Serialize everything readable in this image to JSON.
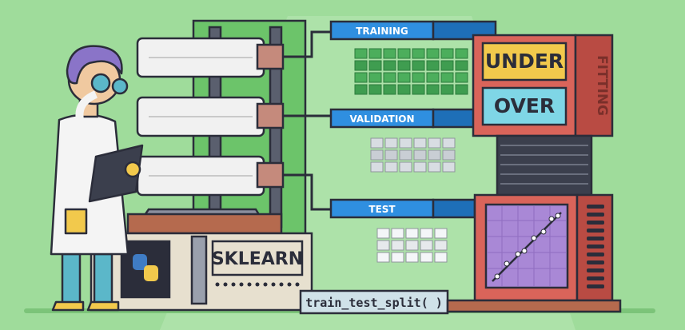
{
  "illustration": {
    "data_split": {
      "training_label": "TRAINING",
      "validation_label": "VALIDATION",
      "test_label": "TEST"
    },
    "library_badge": "SKLEARN",
    "function_plate": "train_test_split( )",
    "fit_panel": {
      "under_label": "UNDER",
      "over_label": "OVER",
      "side_label": "FITTING"
    },
    "colors": {
      "background": "#9fdc9b",
      "accent_blue": "#2f8fe0",
      "panel_red": "#d9645a",
      "panel_yellow": "#f2c94c",
      "panel_cyan": "#7fd6e6",
      "plot_purple": "#a988d6",
      "outline": "#2b2d3a"
    }
  }
}
